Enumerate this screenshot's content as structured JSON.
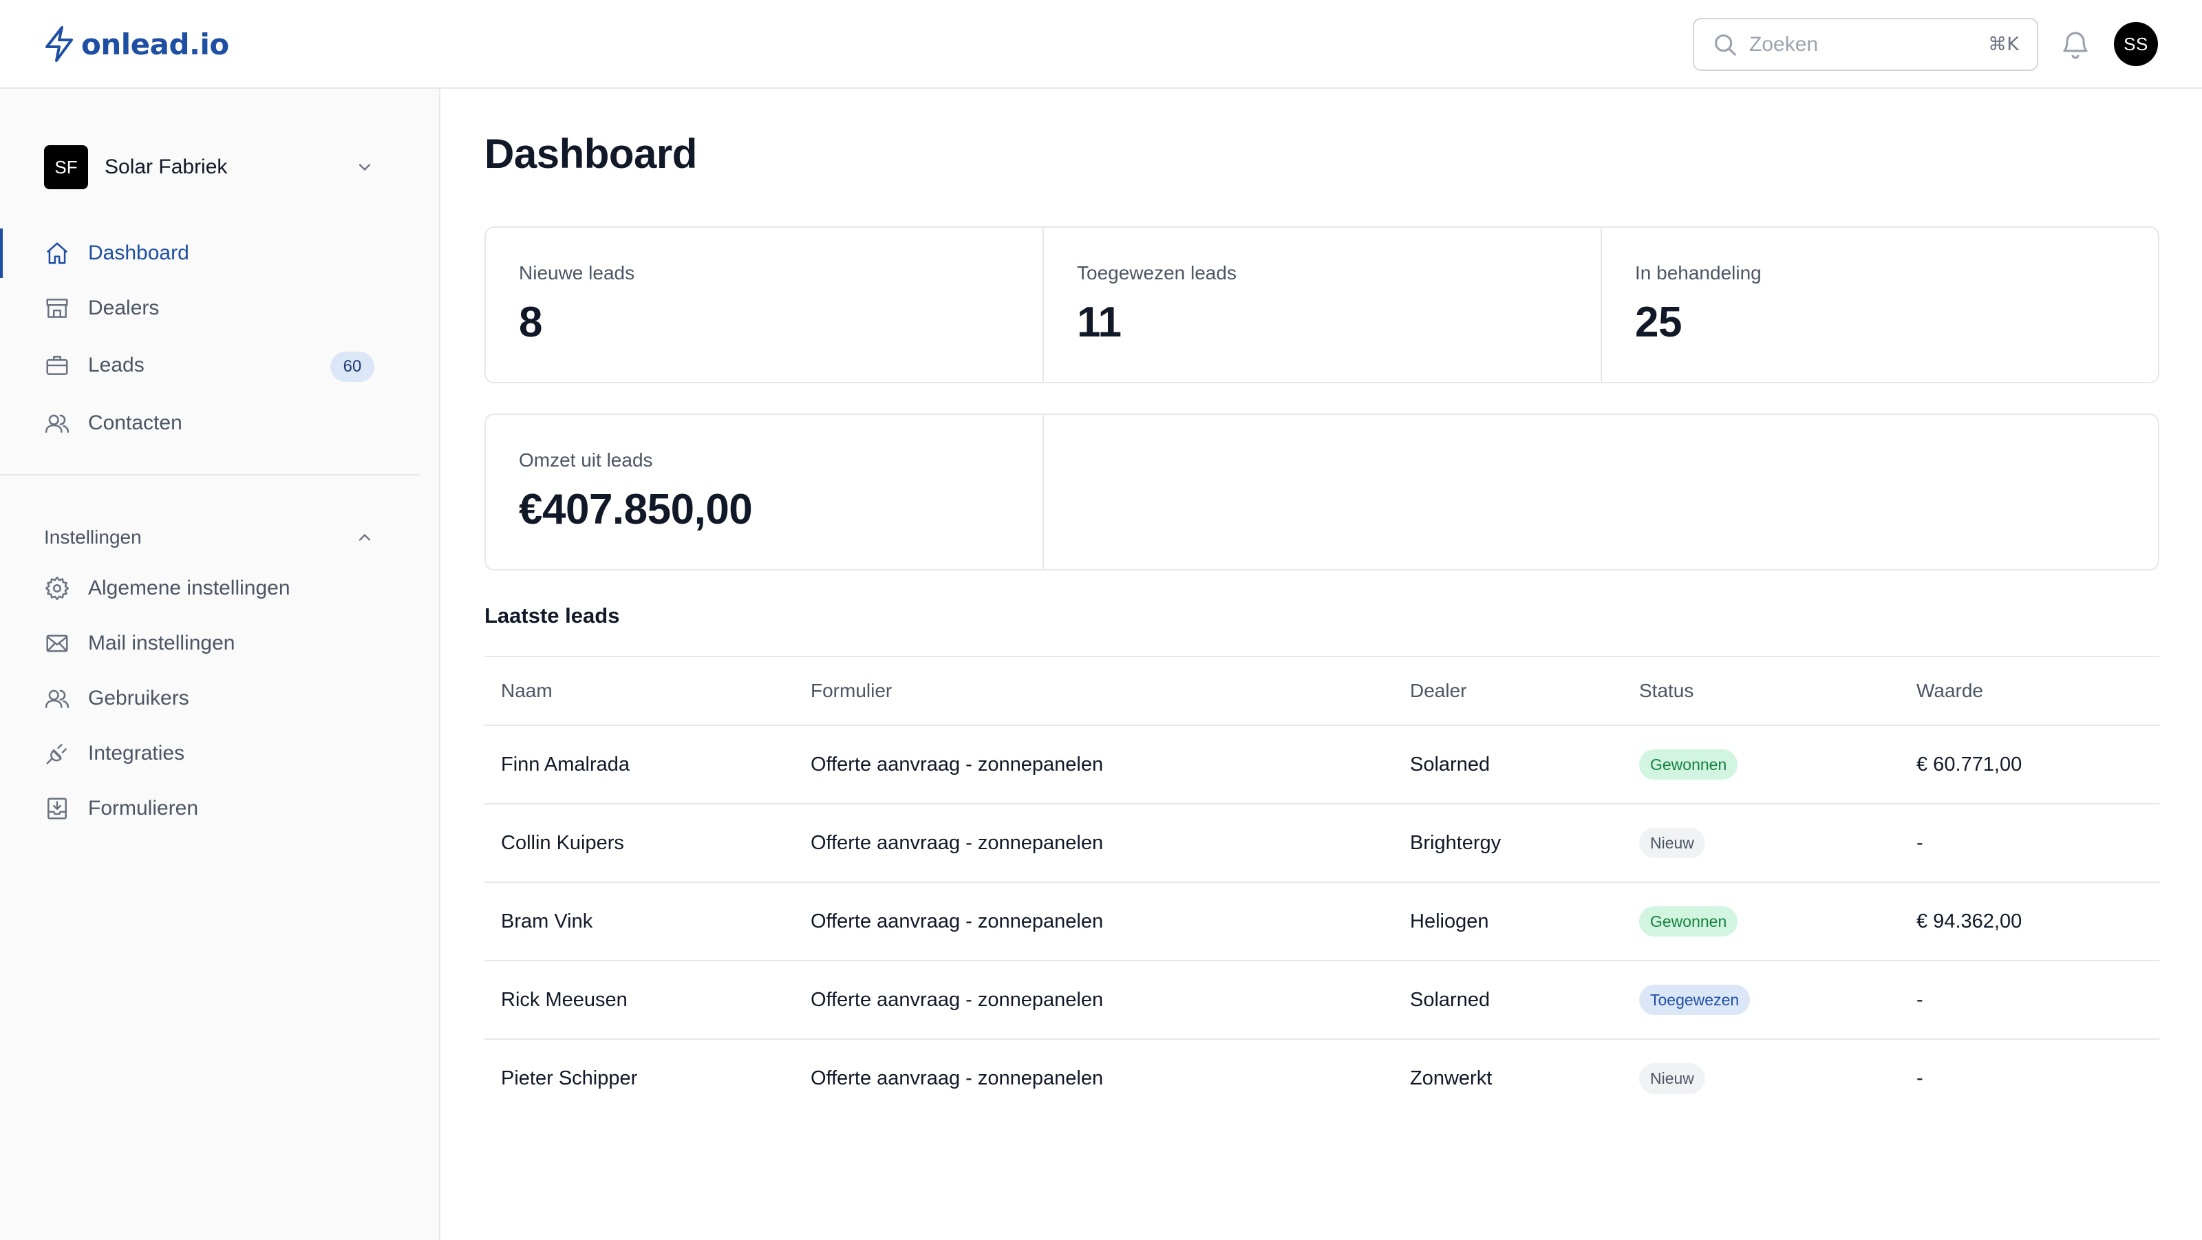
{
  "app": {
    "logo_text": "onlead.io",
    "brand_color": "#1e4fa3"
  },
  "header": {
    "search_placeholder": "Zoeken",
    "search_shortcut": "⌘K",
    "user_initials": "SS"
  },
  "sidebar": {
    "org": {
      "initials": "SF",
      "name": "Solar Fabriek"
    },
    "nav": [
      {
        "label": "Dashboard",
        "icon": "home-icon",
        "active": true
      },
      {
        "label": "Dealers",
        "icon": "store-icon"
      },
      {
        "label": "Leads",
        "icon": "briefcase-icon",
        "badge": "60"
      },
      {
        "label": "Contacten",
        "icon": "users-icon"
      }
    ],
    "settings": {
      "title": "Instellingen",
      "items": [
        {
          "label": "Algemene instellingen",
          "icon": "gear-icon"
        },
        {
          "label": "Mail instellingen",
          "icon": "mail-icon"
        },
        {
          "label": "Gebruikers",
          "icon": "users-icon"
        },
        {
          "label": "Integraties",
          "icon": "plug-icon"
        },
        {
          "label": "Formulieren",
          "icon": "download-tray-icon"
        }
      ]
    }
  },
  "main": {
    "title": "Dashboard",
    "stats": [
      {
        "label": "Nieuwe leads",
        "value": "8"
      },
      {
        "label": "Toegewezen leads",
        "value": "11"
      },
      {
        "label": "In behandeling",
        "value": "25"
      },
      {
        "label": "Omzet uit leads",
        "value": "€407.850,00"
      }
    ],
    "latest_leads": {
      "title": "Laatste leads",
      "columns": [
        "Naam",
        "Formulier",
        "Dealer",
        "Status",
        "Waarde"
      ],
      "rows": [
        {
          "name": "Finn Amalrada",
          "form": "Offerte aanvraag - zonnepanelen",
          "dealer": "Solarned",
          "status": "Gewonnen",
          "value": "€ 60.771,00"
        },
        {
          "name": "Collin Kuipers",
          "form": "Offerte aanvraag - zonnepanelen",
          "dealer": "Brightergy",
          "status": "Nieuw",
          "value": "-"
        },
        {
          "name": "Bram Vink",
          "form": "Offerte aanvraag - zonnepanelen",
          "dealer": "Heliogen",
          "status": "Gewonnen",
          "value": "€ 94.362,00"
        },
        {
          "name": "Rick Meeusen",
          "form": "Offerte aanvraag - zonnepanelen",
          "dealer": "Solarned",
          "status": "Toegewezen",
          "value": "-"
        },
        {
          "name": "Pieter Schipper",
          "form": "Offerte aanvraag - zonnepanelen",
          "dealer": "Zonwerkt",
          "status": "Nieuw",
          "value": "-"
        }
      ]
    }
  },
  "status_colors": {
    "Gewonnen": "#15803d",
    "Nieuw": "#4b5563",
    "Toegewezen": "#1e4fa3"
  }
}
